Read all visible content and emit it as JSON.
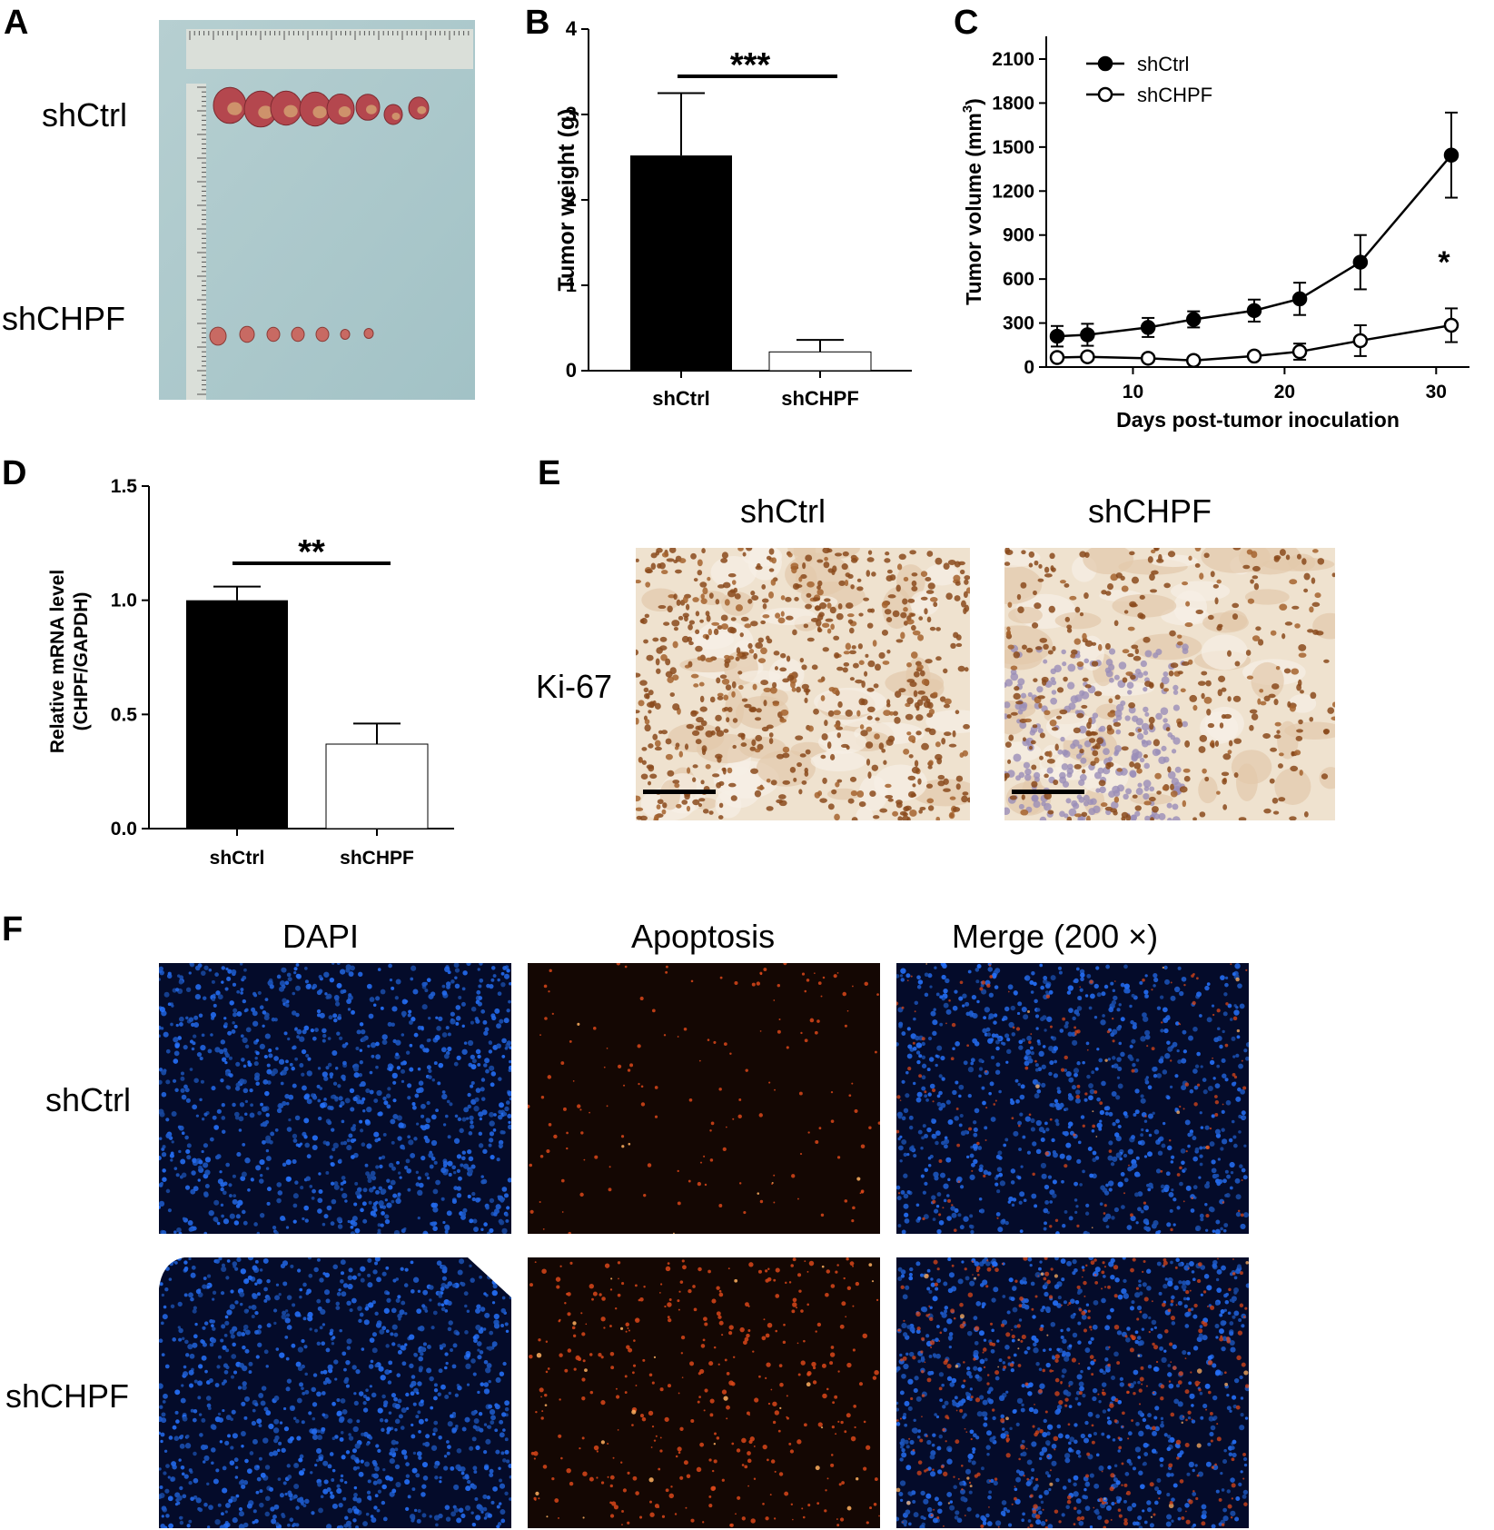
{
  "panels": {
    "a": {
      "label": "A",
      "row1": "shCtrl",
      "row2": "shCHPF"
    },
    "b": {
      "label": "B"
    },
    "c": {
      "label": "C"
    },
    "d": {
      "label": "D"
    },
    "e": {
      "label": "E",
      "col1": "shCtrl",
      "col2": "shCHPF",
      "row": "Ki-67"
    },
    "f": {
      "label": "F",
      "col1": "DAPI",
      "col2": "Apoptosis",
      "col3": "Merge (200 ×)",
      "row1": "shCtrl",
      "row2": "shCHPF"
    }
  },
  "colors": {
    "black_bar": "#000000",
    "ruler": "#d9ddd8",
    "tray": "#a9c9cc",
    "tumor": "#b3474f",
    "dapi": "#1f55e0",
    "apoptosis": "#e0501a",
    "ihc_bg": "#ecdcc8",
    "ihc_brown": "#8a4a1c"
  },
  "chart_data": [
    {
      "type": "bar",
      "categories": [
        "shCtrl",
        "shCHPF"
      ],
      "values": [
        2.52,
        0.22
      ],
      "errors": [
        0.73,
        0.14
      ],
      "ylabel": "Tumor weight (g)",
      "ylim": [
        0,
        4
      ],
      "yticks": [
        "0",
        "1",
        "2",
        "3",
        "4"
      ],
      "significance": "***"
    },
    {
      "type": "line",
      "xlabel": "Days post-tumor inoculation",
      "ylabel": "Tumor volume (mm",
      "ylabel_sup": "3",
      "ylabel_end": ")",
      "xlim": [
        3.5,
        32
      ],
      "ylim": [
        0,
        2200
      ],
      "xticks": [
        "10",
        "20",
        "30"
      ],
      "yticks": [
        "0",
        "300",
        "600",
        "900",
        "1200",
        "1500",
        "1800",
        "2100"
      ],
      "x": [
        5,
        7,
        11,
        14,
        18,
        21,
        25,
        31
      ],
      "series": [
        {
          "name": "shCtrl",
          "values": [
            210,
            220,
            270,
            325,
            385,
            465,
            715,
            1445
          ],
          "errors": [
            70,
            75,
            65,
            55,
            75,
            110,
            185,
            290
          ],
          "marker": "filled"
        },
        {
          "name": "shCHPF",
          "values": [
            65,
            70,
            60,
            45,
            75,
            105,
            180,
            285
          ],
          "errors": [
            15,
            15,
            15,
            10,
            20,
            55,
            105,
            115
          ],
          "marker": "open"
        }
      ],
      "significance": "*"
    },
    {
      "type": "bar",
      "categories": [
        "shCtrl",
        "shCHPF"
      ],
      "values": [
        1.0,
        0.37
      ],
      "errors": [
        0.06,
        0.09
      ],
      "ylabel": "Relative mRNA level",
      "ylabel2": "(CHPF/GAPDH)",
      "ylim": [
        0,
        1.5
      ],
      "yticks": [
        "0.0",
        "0.5",
        "1.0",
        "1.5"
      ],
      "significance": "**"
    }
  ]
}
